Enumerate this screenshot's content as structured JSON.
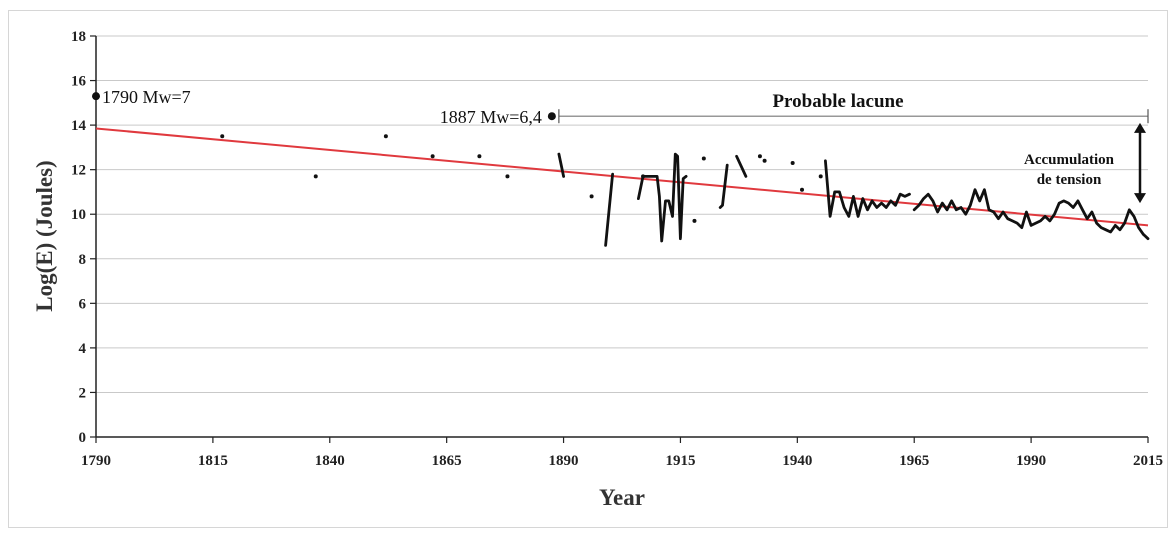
{
  "chart_data": {
    "type": "line",
    "title": "",
    "xlabel": "Year",
    "ylabel": "Log(E)  (Joules)",
    "xlim": [
      1790,
      2015
    ],
    "ylim": [
      0,
      18
    ],
    "xticks": [
      1790,
      1815,
      1840,
      1865,
      1890,
      1915,
      1940,
      1965,
      1990,
      2015
    ],
    "yticks": [
      0,
      2,
      4,
      6,
      8,
      10,
      12,
      14,
      16,
      18
    ],
    "grid": "horizontal",
    "trend_line": {
      "color": "#e0393e",
      "x": [
        1790,
        2015
      ],
      "y": [
        13.85,
        9.5
      ]
    },
    "big_events": [
      {
        "label": "1790 Mw=7",
        "x": 1790,
        "y": 15.3
      },
      {
        "label": "1887 Mw=6,4",
        "x": 1887.5,
        "y": 14.4
      }
    ],
    "sparse_points": [
      {
        "x": 1817,
        "y": 13.5
      },
      {
        "x": 1837,
        "y": 11.7
      },
      {
        "x": 1852,
        "y": 13.5
      },
      {
        "x": 1862,
        "y": 12.6
      },
      {
        "x": 1872,
        "y": 12.6
      },
      {
        "x": 1878,
        "y": 11.7
      },
      {
        "x": 1896,
        "y": 10.8
      },
      {
        "x": 1907,
        "y": 11.7
      },
      {
        "x": 1918,
        "y": 9.7
      },
      {
        "x": 1920,
        "y": 12.5
      },
      {
        "x": 1932,
        "y": 12.6
      },
      {
        "x": 1933,
        "y": 12.4
      },
      {
        "x": 1939,
        "y": 12.3
      },
      {
        "x": 1941,
        "y": 11.1
      },
      {
        "x": 1945,
        "y": 11.7
      }
    ],
    "segments": [
      {
        "x": [
          1889,
          1890
        ],
        "y": [
          12.7,
          11.7
        ]
      },
      {
        "x": [
          1899,
          1900.5
        ],
        "y": [
          8.6,
          11.8
        ]
      },
      {
        "x": [
          1906,
          1907,
          1908,
          1909,
          1910,
          1910.5,
          1911,
          1911.8,
          1912.5,
          1913.3,
          1913.9,
          1914.4,
          1915,
          1915.6,
          1916.2
        ],
        "y": [
          10.7,
          11.7,
          11.7,
          11.7,
          11.7,
          10.8,
          8.8,
          10.6,
          10.6,
          9.9,
          12.7,
          12.6,
          8.9,
          11.6,
          11.7
        ]
      },
      {
        "x": [
          1923.5,
          1924,
          1925
        ],
        "y": [
          10.3,
          10.4,
          12.2
        ]
      },
      {
        "x": [
          1927,
          1929
        ],
        "y": [
          12.6,
          11.7
        ]
      },
      {
        "x": [
          1946,
          1947,
          1948,
          1949,
          1950,
          1951,
          1952,
          1953,
          1954,
          1955,
          1956,
          1957,
          1958,
          1959,
          1960,
          1961,
          1962,
          1963,
          1964
        ],
        "y": [
          12.4,
          9.9,
          11.0,
          11.0,
          10.3,
          9.9,
          10.8,
          9.9,
          10.7,
          10.2,
          10.6,
          10.3,
          10.5,
          10.3,
          10.6,
          10.4,
          10.9,
          10.8,
          10.9
        ]
      },
      {
        "x": [
          1965,
          1966,
          1967,
          1968,
          1969,
          1970,
          1971,
          1972,
          1973,
          1974,
          1975,
          1976,
          1977,
          1978,
          1979,
          1980,
          1981,
          1982,
          1983,
          1984,
          1985,
          1986,
          1987,
          1988,
          1989,
          1990,
          1991,
          1992,
          1993,
          1994,
          1995,
          1996,
          1997,
          1998,
          1999,
          2000,
          2001,
          2002,
          2003,
          2004,
          2005,
          2006,
          2007,
          2008,
          2009,
          2010,
          2011,
          2012,
          2013,
          2014,
          2015
        ],
        "y": [
          10.2,
          10.4,
          10.7,
          10.9,
          10.6,
          10.1,
          10.5,
          10.2,
          10.6,
          10.2,
          10.3,
          10.0,
          10.4,
          11.1,
          10.6,
          11.1,
          10.2,
          10.1,
          9.8,
          10.1,
          9.8,
          9.7,
          9.6,
          9.4,
          10.1,
          9.5,
          9.6,
          9.7,
          9.9,
          9.7,
          10.0,
          10.5,
          10.6,
          10.5,
          10.3,
          10.6,
          10.2,
          9.8,
          10.1,
          9.6,
          9.4,
          9.3,
          9.2,
          9.5,
          9.3,
          9.6,
          10.2,
          9.9,
          9.4,
          9.1,
          8.9
        ]
      }
    ],
    "annotations": {
      "lacune": {
        "label": "Probable lacune",
        "x_start": 1889,
        "x_end": 2015,
        "y": 14.4
      },
      "accumulation": {
        "label_line1": "Accumulation",
        "label_line2": "de tension",
        "x": 2015,
        "y_top": 14.1,
        "y_bottom": 10.5
      }
    }
  }
}
